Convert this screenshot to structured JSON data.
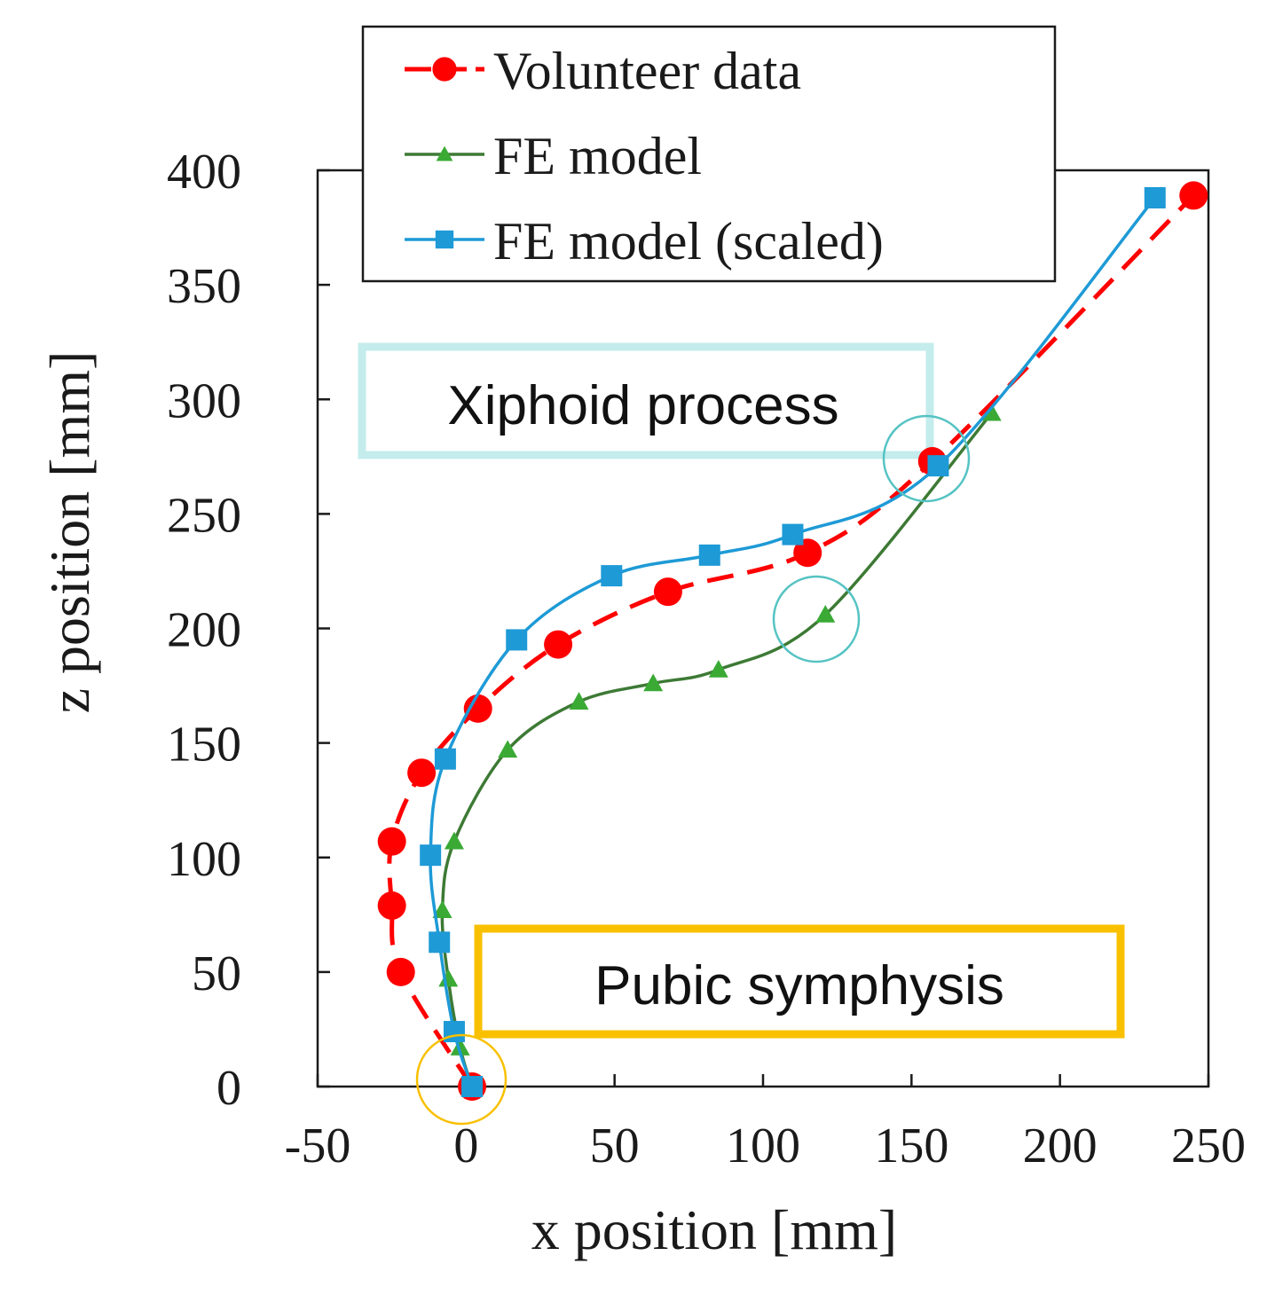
{
  "chart_data": {
    "type": "line",
    "title": "",
    "xlabel": "x position [mm]",
    "ylabel": "z position [mm]",
    "xlim": [
      -50,
      250
    ],
    "ylim": [
      0,
      400
    ],
    "xticks": [
      -50,
      0,
      50,
      100,
      150,
      200,
      250
    ],
    "yticks": [
      0,
      50,
      100,
      150,
      200,
      250,
      300,
      350,
      400
    ],
    "grid": false,
    "legend_position": "top",
    "series": [
      {
        "name": "Volunteer data",
        "color": "#ff0000",
        "line_style": "dashed",
        "marker": "circle",
        "points": [
          [
            2,
            0
          ],
          [
            -22,
            50
          ],
          [
            -25,
            79
          ],
          [
            -25,
            107
          ],
          [
            -15,
            137
          ],
          [
            4,
            165
          ],
          [
            31,
            193
          ],
          [
            68,
            216
          ],
          [
            115,
            233
          ],
          [
            157,
            273
          ],
          [
            245,
            389
          ]
        ]
      },
      {
        "name": "FE model",
        "color": "#3d7a35",
        "marker_color": "#3aaa35",
        "line_style": "solid",
        "marker": "triangle",
        "points": [
          [
            2,
            0
          ],
          [
            -2,
            17
          ],
          [
            -6,
            47
          ],
          [
            -8,
            77
          ],
          [
            -4,
            107
          ],
          [
            14,
            147
          ],
          [
            38,
            168
          ],
          [
            63,
            176
          ],
          [
            85,
            182
          ],
          [
            121,
            206
          ],
          [
            177,
            294
          ]
        ]
      },
      {
        "name": "FE model (scaled)",
        "color": "#1e9ad6",
        "line_style": "solid",
        "marker": "square",
        "points": [
          [
            2,
            0
          ],
          [
            -4,
            24
          ],
          [
            -9,
            63
          ],
          [
            -12,
            101
          ],
          [
            -7,
            143
          ],
          [
            17,
            195
          ],
          [
            49,
            223
          ],
          [
            82,
            232
          ],
          [
            110,
            241
          ],
          [
            159,
            271
          ],
          [
            232,
            388
          ]
        ]
      }
    ],
    "annotations": [
      {
        "text": "Xiphoid process",
        "box_color": "#c4ecec"
      },
      {
        "text": "Pubic symphysis",
        "box_color": "#f9c000"
      }
    ],
    "circle_colors": {
      "xiphoid": "#56c3c3",
      "pubic": "#f9c000"
    }
  }
}
